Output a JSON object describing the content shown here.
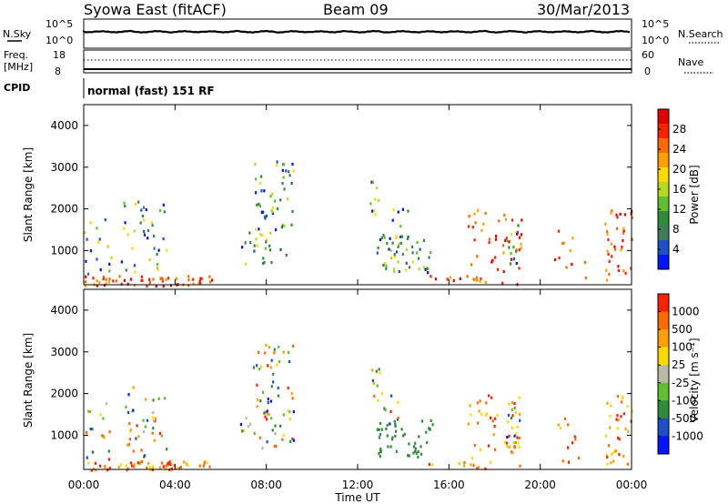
{
  "header": {
    "station": "Syowa East (fitACF)",
    "beam": "Beam 09",
    "date": "30/Mar/2013"
  },
  "noise_panel": {
    "left_label": "N.Sky",
    "right_label": "N.Search",
    "left_ticks": [
      "10^5",
      "10^0"
    ],
    "right_ticks": [
      "10^5",
      "10^0"
    ]
  },
  "freq_panel": {
    "left_label_line1": "Freq.",
    "left_label_line2": "[MHz]",
    "right_label": "Nave",
    "left_ticks": [
      "18",
      "8"
    ],
    "right_ticks": [
      "60",
      "0"
    ]
  },
  "cpid": {
    "label": "CPID",
    "text": "normal (fast) 151 RF"
  },
  "chart_data": [
    {
      "type": "heatmap",
      "title": "",
      "ylabel": "Slant Range [km]",
      "xlabel": "",
      "ylim": [
        180,
        4500
      ],
      "yticks": [
        "1000",
        "2000",
        "3000",
        "4000"
      ],
      "xticks": [
        "00:00",
        "04:00",
        "08:00",
        "12:00",
        "16:00",
        "20:00",
        "00:00"
      ],
      "colorbar": {
        "label": "Power [dB]",
        "ticks": [
          "4",
          "8",
          "12",
          "16",
          "20",
          "24",
          "28"
        ],
        "colors": [
          "#0014ff",
          "#1e4fc8",
          "#3f7d5a",
          "#2e8b3a",
          "#5fbf2e",
          "#b6d820",
          "#ffd800",
          "#ffa000",
          "#ff6a00",
          "#ff2000",
          "#e00000"
        ]
      }
    },
    {
      "type": "heatmap",
      "title": "",
      "ylabel": "Slant Range [km]",
      "xlabel": "Time UT",
      "ylim": [
        180,
        4500
      ],
      "yticks": [
        "1000",
        "2000",
        "3000",
        "4000"
      ],
      "xticks": [
        "00:00",
        "04:00",
        "08:00",
        "12:00",
        "16:00",
        "20:00",
        "00:00"
      ],
      "colorbar": {
        "label": "Velocity [m s⁻¹]",
        "ticks": [
          "1000",
          "500",
          "100",
          "25",
          "-25",
          "-100",
          "-500",
          "-1000"
        ],
        "colors": [
          "#0014ff",
          "#1e4fc8",
          "#2e8b3a",
          "#5fbf2e",
          "#b9b9a8",
          "#ffd800",
          "#ffa000",
          "#ff6a00",
          "#ff2000"
        ]
      }
    }
  ]
}
